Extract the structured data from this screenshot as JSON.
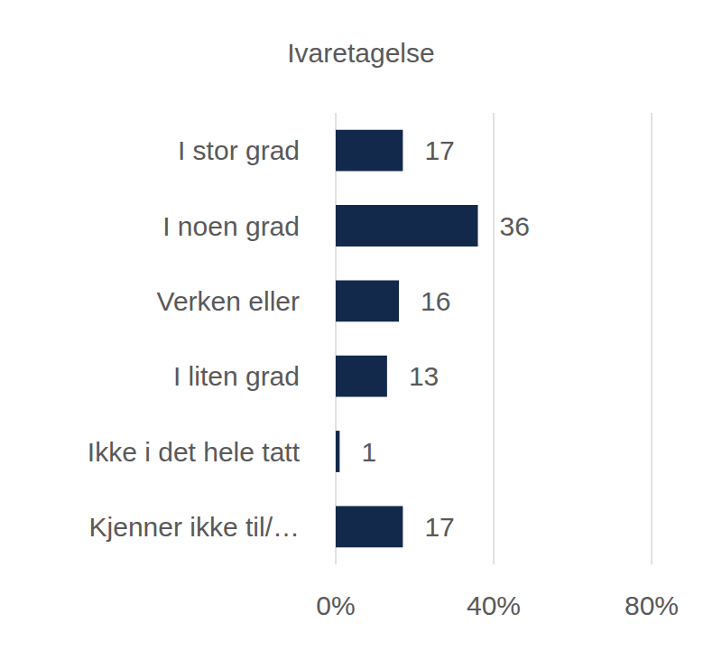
{
  "chart_data": {
    "type": "bar",
    "title": "Ivaretagelse",
    "orientation": "horizontal",
    "categories": [
      "I stor grad",
      "I noen grad",
      "Verken eller",
      "I liten grad",
      "Ikke i det hele tatt",
      "Kjenner ikke til/…"
    ],
    "values": [
      17,
      36,
      16,
      13,
      1,
      17
    ],
    "color": "#13294b",
    "xlim": [
      0,
      80
    ],
    "xticks": [
      {
        "value": 0,
        "label": "0%"
      },
      {
        "value": 40,
        "label": "40%"
      },
      {
        "value": 80,
        "label": "80%"
      }
    ],
    "grid": true,
    "data_labels": true
  }
}
